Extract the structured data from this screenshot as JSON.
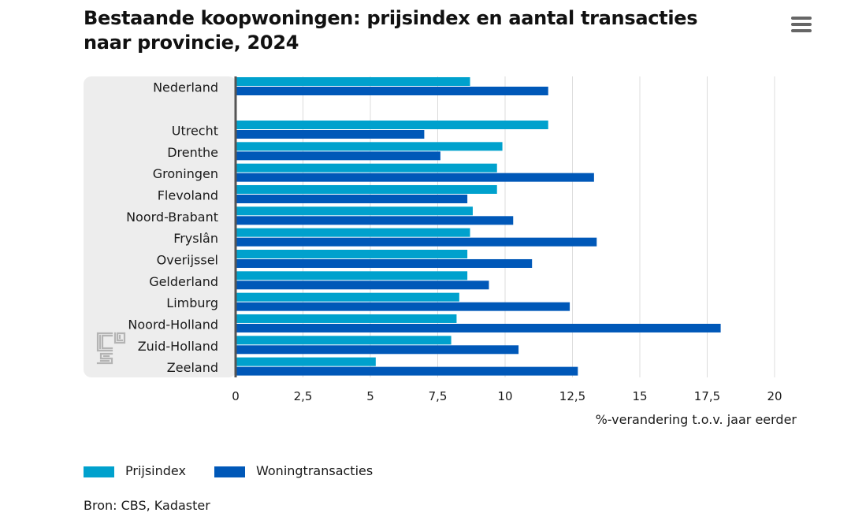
{
  "chart_data": {
    "type": "bar",
    "orientation": "horizontal",
    "title": "Bestaande koopwoningen: prijsindex en aantal transacties naar provincie, 2024",
    "categories": [
      "Nederland",
      "Utrecht",
      "Drenthe",
      "Groningen",
      "Flevoland",
      "Noord-Brabant",
      "Fryslân",
      "Overijssel",
      "Gelderland",
      "Limburg",
      "Noord-Holland",
      "Zuid-Holland",
      "Zeeland"
    ],
    "series": [
      {
        "name": "Prijsindex",
        "color": "#00a1cd",
        "values": [
          8.7,
          11.6,
          9.9,
          9.7,
          9.7,
          8.8,
          8.7,
          8.6,
          8.6,
          8.3,
          8.2,
          8.0,
          5.2
        ]
      },
      {
        "name": "Woningtransacties",
        "color": "#0058b8",
        "values": [
          11.6,
          7.0,
          7.6,
          13.3,
          8.6,
          10.3,
          13.4,
          11.0,
          9.4,
          12.4,
          18.0,
          10.5,
          12.7
        ]
      }
    ],
    "xlabel": "%-verandering t.o.v. jaar eerder",
    "ylabel": "",
    "xlim": [
      0,
      20
    ],
    "xticks": [
      0,
      2.5,
      5,
      7.5,
      10,
      12.5,
      15,
      17.5,
      20
    ],
    "xtick_labels": [
      "0",
      "2,5",
      "5",
      "7,5",
      "10",
      "12,5",
      "15",
      "17,5",
      "20"
    ],
    "grid": true,
    "legend_position": "bottom-left"
  },
  "header": {
    "title": "Bestaande koopwoningen: prijsindex en aantal transacties naar provincie, 2024"
  },
  "menu": {
    "icon": "hamburger-menu-icon"
  },
  "logo": {
    "icon": "cbs-logo-icon",
    "text": "cbs"
  },
  "legend": {
    "items": [
      {
        "label": "Prijsindex",
        "color": "#00a1cd"
      },
      {
        "label": "Woningtransacties",
        "color": "#0058b8"
      }
    ]
  },
  "footer": {
    "source": "Bron: CBS, Kadaster"
  },
  "colors": {
    "label_panel": "#ededed",
    "gridline": "#dcdcdc",
    "axis": "#555555",
    "logo": "#b4b4b4"
  }
}
